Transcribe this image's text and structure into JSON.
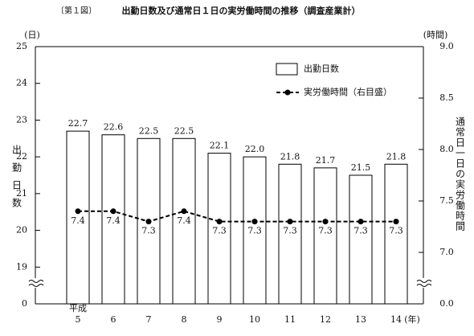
{
  "chart_data": {
    "type": "combo",
    "figure_label": "〔第１図〕",
    "title": "出勤日数及び通常日１日の実労働時間の推移（調査産業計）",
    "y_label": "出勤日数",
    "y_unit": "(日)",
    "y2_label": "通常日一日の実労働時間",
    "y2_unit": "(時間)",
    "x_era": "平成",
    "x_unit": "(年)",
    "categories": [
      "5",
      "6",
      "7",
      "8",
      "9",
      "10",
      "11",
      "12",
      "13",
      "14"
    ],
    "series": [
      {
        "name": "出勤日数",
        "type": "bar",
        "color": "#ffffff",
        "values": [
          22.7,
          22.6,
          22.5,
          22.5,
          22.1,
          22.0,
          21.8,
          21.7,
          21.5,
          21.8
        ],
        "value_labels": [
          "22.7",
          "22.6",
          "22.5",
          "22.5",
          "22.1",
          "22.0",
          "21.8",
          "21.7",
          "21.5",
          "21.8"
        ]
      },
      {
        "name": "実労働時間（右目盛）",
        "type": "line",
        "axis": "y2",
        "color": "#000000",
        "values": [
          7.4,
          7.4,
          7.3,
          7.4,
          7.3,
          7.3,
          7.3,
          7.3,
          7.3,
          7.3
        ]
      }
    ],
    "ylim": [
      0,
      25
    ],
    "y_break": [
      0,
      18
    ],
    "yticks": [
      0,
      19,
      20,
      21,
      22,
      23,
      24,
      25
    ],
    "y2lim": [
      0,
      9
    ],
    "y2_break": [
      0,
      6.5
    ],
    "y2ticks": [
      {
        "value": 0,
        "label": "0.0"
      },
      {
        "value": 7,
        "label": "7.0"
      },
      7.5,
      {
        "value": 8,
        "label": "8.0"
      },
      8.5,
      {
        "value": 9,
        "label": "9.0"
      }
    ],
    "legend": "upper right"
  }
}
